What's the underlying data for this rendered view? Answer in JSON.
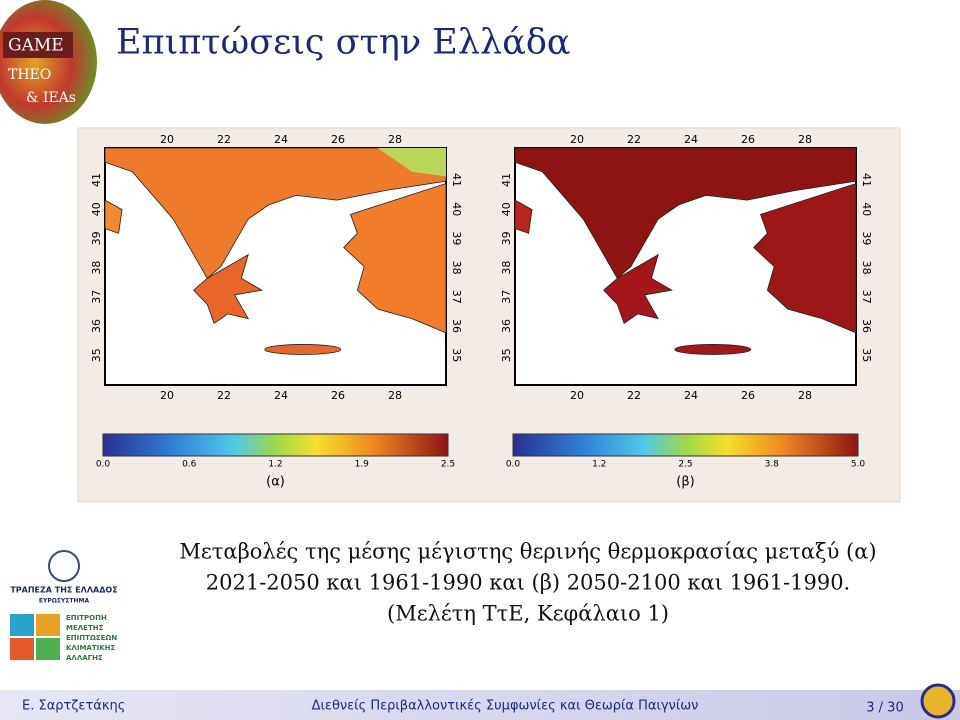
{
  "header": {
    "title": "Επιπτώσεις στην Ελλάδα",
    "logo": [
      "GAME",
      "THEO",
      "& IEAs"
    ]
  },
  "figure": {
    "panels": [
      {
        "label": "(α)",
        "top_ticks": [
          "20",
          "22",
          "24",
          "26",
          "28"
        ],
        "side_ticks": [
          "41",
          "40",
          "39",
          "38",
          "37",
          "36",
          "35"
        ],
        "colorbar_ticks": [
          "0.0",
          "0.6",
          "1.2",
          "1.9",
          "2.5"
        ]
      },
      {
        "label": "(β)",
        "top_ticks": [
          "20",
          "22",
          "24",
          "26",
          "28"
        ],
        "side_ticks": [
          "41",
          "40",
          "39",
          "38",
          "37",
          "36",
          "35"
        ],
        "colorbar_ticks": [
          "0.0",
          "1.2",
          "2.5",
          "3.8",
          "5.0"
        ]
      }
    ]
  },
  "caption": [
    "Μεταβολές της μέσης μέγιστης θερινής θερμοκρασίας μεταξύ (α)",
    "2021-2050 και 1961-1990 και (β) 2050-2100 και 1961-1990.",
    "(Μελέτη ΤτΕ, Κεφάλαιο 1)"
  ],
  "side_logos": {
    "bank": [
      "ΤΡΑΠΕΖΑ ΤΗΣ ΕΛΛΑΔΟΣ",
      "ΕΥΡΩΣΥΣΤΗΜΑ"
    ],
    "committee": [
      "ΕΠΙΤΡΟΠΗ",
      "ΜΕΛΕΤΗΣ",
      "ΕΠΙΠΤΩΣΕΩΝ",
      "ΚΛΙΜΑΤΙΚΗΣ",
      "ΑΛΛΑΓΗΣ"
    ]
  },
  "footer": {
    "author": "Ε. Σαρτζετάκης",
    "title": "Διεθνείς Περιβαλλοντικές Συμφωνίες και Θεωρία Παιγνίων",
    "page": "3 / 30"
  }
}
